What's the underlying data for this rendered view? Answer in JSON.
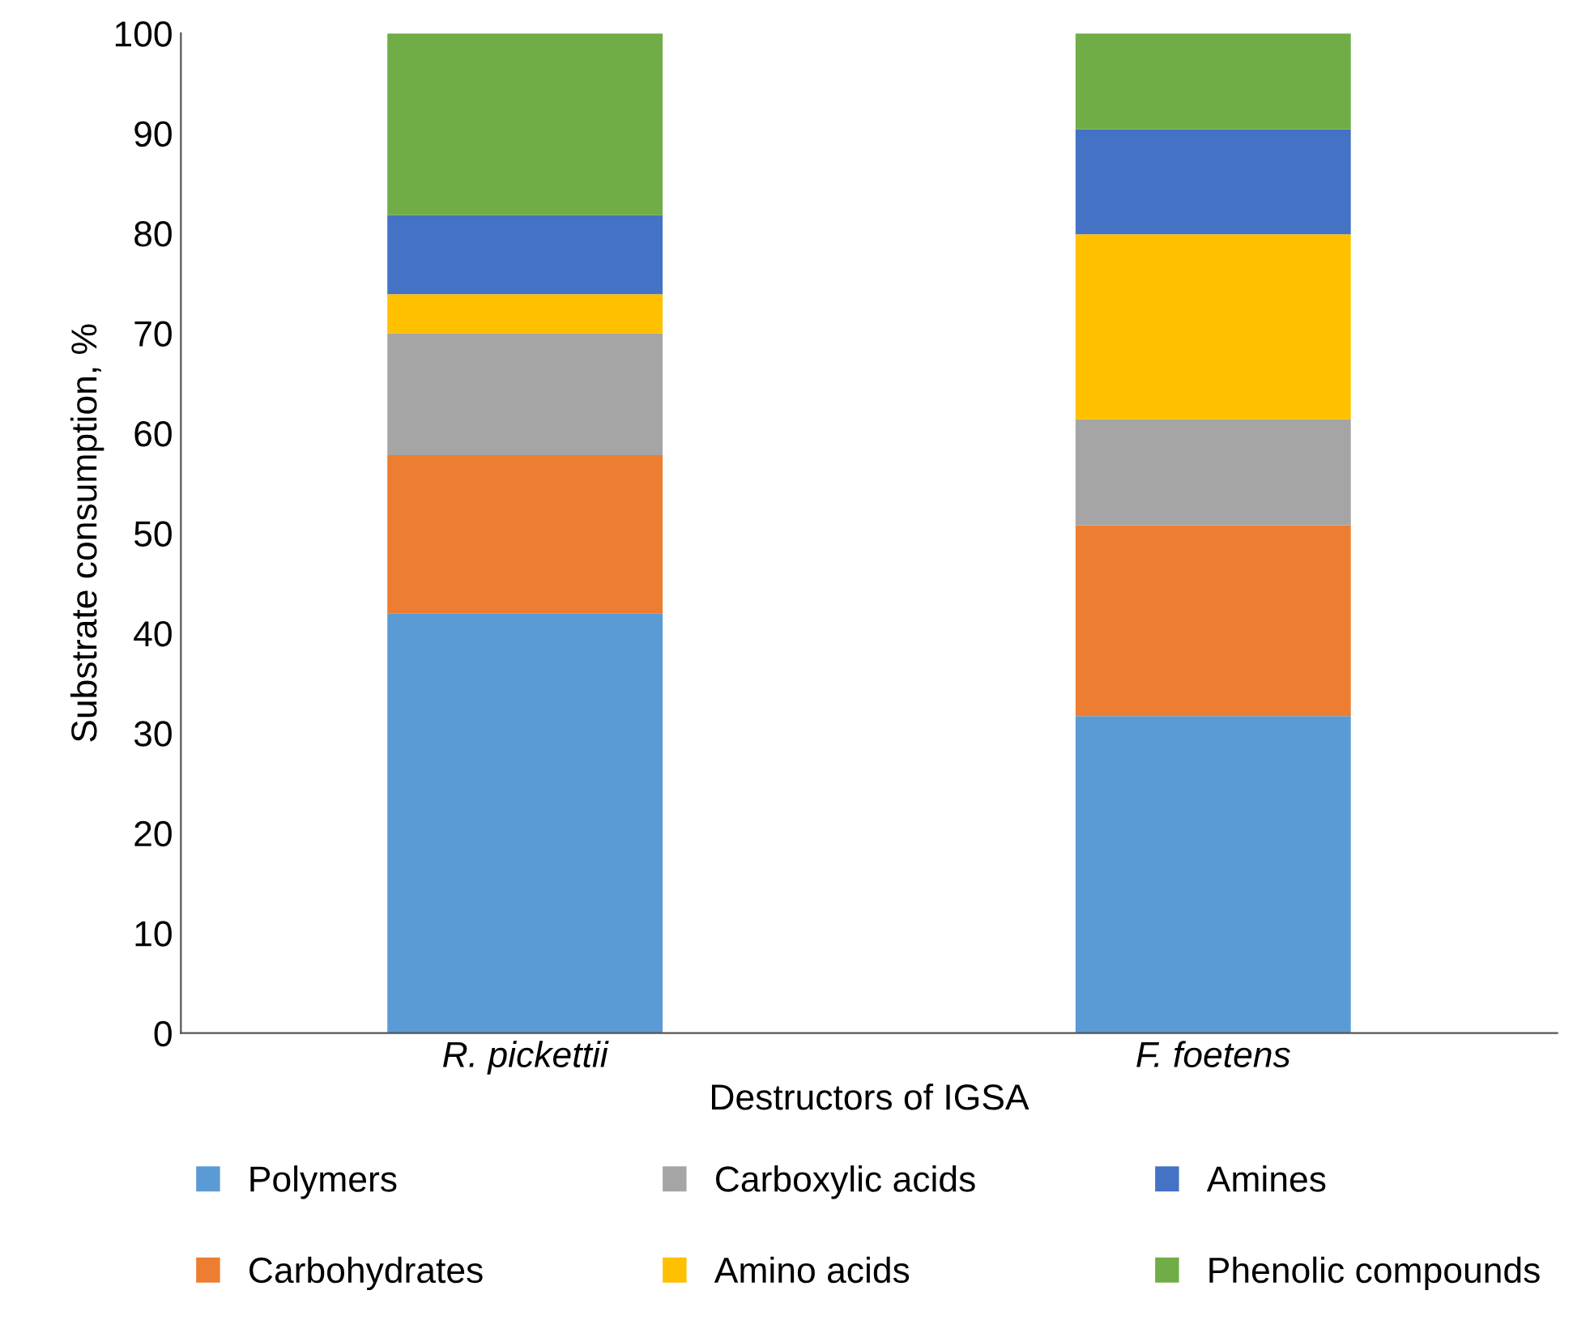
{
  "chart_data": {
    "type": "bar",
    "stacked": true,
    "xlabel": "Destructors of IGSA",
    "ylabel": "Substrate consumption, %",
    "categories": [
      "R. pickettii",
      "F. foetens"
    ],
    "ylim": [
      0,
      100
    ],
    "yticks": [
      0,
      10,
      20,
      30,
      40,
      50,
      60,
      70,
      80,
      90,
      100
    ],
    "grid": false,
    "legend": "bottom",
    "series": [
      {
        "name": "Polymers",
        "color": "#5b9bd5",
        "values": [
          42.0,
          31.7
        ]
      },
      {
        "name": "Carbohydrates",
        "color": "#ed7d31",
        "values": [
          15.8,
          19.1
        ]
      },
      {
        "name": "Carboxylic acids",
        "color": "#a5a5a5",
        "values": [
          12.2,
          10.6
        ]
      },
      {
        "name": "Amino acids",
        "color": "#ffc000",
        "values": [
          3.9,
          18.5
        ]
      },
      {
        "name": "Amines",
        "color": "#4472c4",
        "values": [
          7.9,
          10.5
        ]
      },
      {
        "name": "Phenolic compounds",
        "color": "#70ad47",
        "values": [
          18.2,
          9.6
        ]
      }
    ]
  }
}
